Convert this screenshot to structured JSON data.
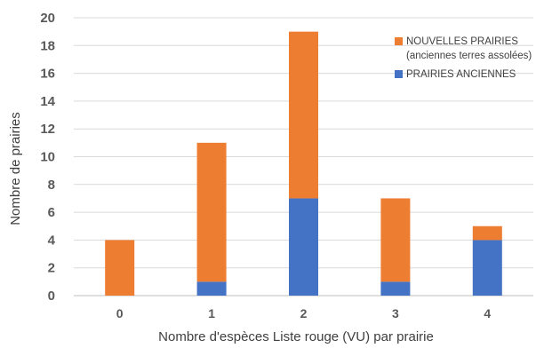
{
  "chart_data": {
    "type": "bar",
    "stacked": true,
    "categories": [
      "0",
      "1",
      "2",
      "3",
      "4"
    ],
    "series": [
      {
        "name": "PRAIRIES ANCIENNES",
        "values": [
          0,
          1,
          7,
          1,
          4
        ],
        "color": "#4472C4"
      },
      {
        "name": "NOUVELLES PRAIRIES",
        "name_line2": "(anciennes terres assolées)",
        "values": [
          4,
          10,
          12,
          6,
          1
        ],
        "color": "#ED7D31"
      }
    ],
    "xlabel": "Nombre d'espèces Liste rouge (VU) par prairie",
    "ylabel": "Nombre de prairies",
    "ylim": [
      0,
      20
    ],
    "yticks": [
      "0",
      "2",
      "4",
      "6",
      "8",
      "10",
      "12",
      "14",
      "16",
      "18",
      "20"
    ],
    "grid": true,
    "legend_position": "top-right"
  }
}
